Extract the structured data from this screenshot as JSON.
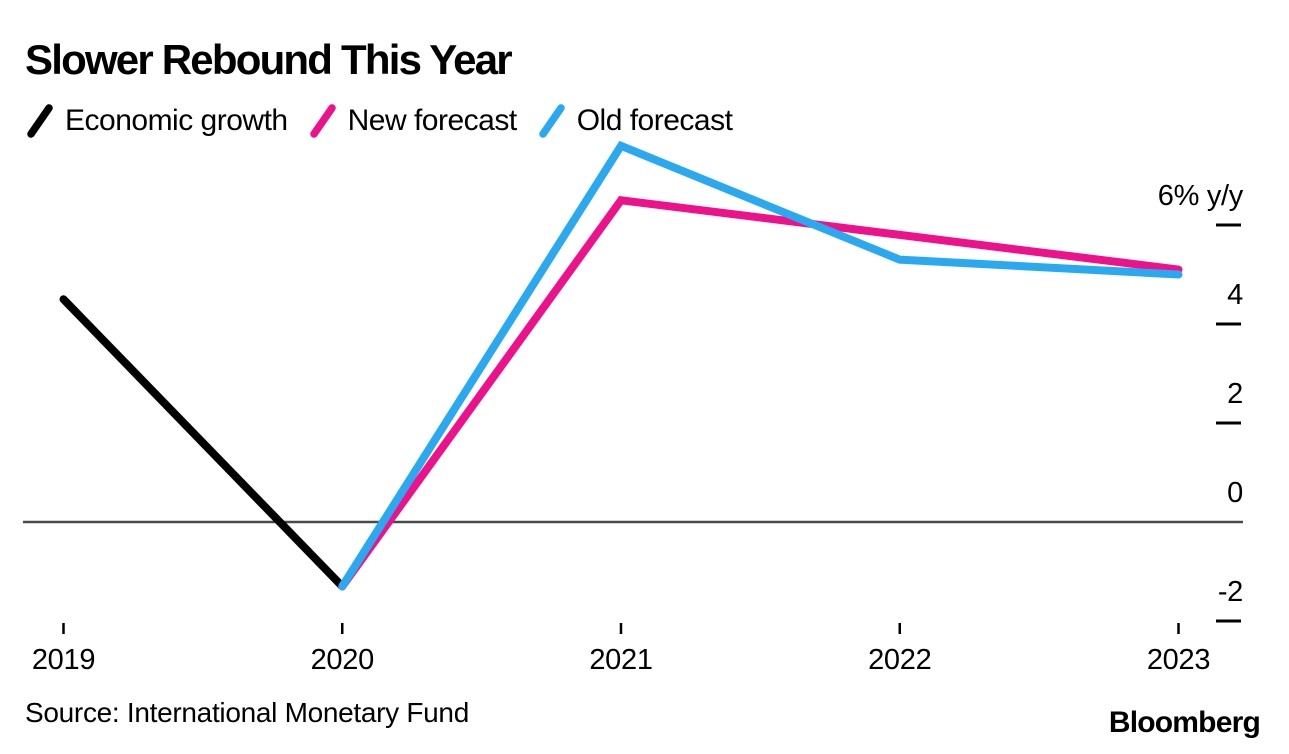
{
  "title": "Slower Rebound This Year",
  "legend": [
    {
      "label": "Economic growth",
      "color": "#000000"
    },
    {
      "label": "New forecast",
      "color": "#ed128c"
    },
    {
      "label": "Old forecast",
      "color": "#2aa9f0"
    }
  ],
  "source": "Source: International Monetary Fund",
  "brand": "Bloomberg",
  "chart_data": {
    "type": "line",
    "title": "Slower Rebound This Year",
    "xlabel": "",
    "ylabel": "% y/y",
    "x": [
      2019,
      2020,
      2021,
      2022,
      2023
    ],
    "x_ticks": [
      "2019",
      "2020",
      "2021",
      "2022",
      "2023"
    ],
    "y_ticks": [
      {
        "value": 6,
        "label": "6% y/y"
      },
      {
        "value": 4,
        "label": "4"
      },
      {
        "value": 2,
        "label": "2"
      },
      {
        "value": 0,
        "label": "0"
      },
      {
        "value": -2,
        "label": "-2"
      }
    ],
    "ylim": [
      -2.7,
      7.9
    ],
    "grid": false,
    "zero_baseline": true,
    "legend_position": "top",
    "series": [
      {
        "name": "Economic growth",
        "color": "#000000",
        "points": [
          [
            2019,
            4.5
          ],
          [
            2020,
            -1.3
          ]
        ]
      },
      {
        "name": "New forecast",
        "color": "#ed128c",
        "points": [
          [
            2020,
            -1.3
          ],
          [
            2021,
            6.5
          ],
          [
            2022,
            5.8
          ],
          [
            2023,
            5.1
          ]
        ]
      },
      {
        "name": "Old forecast",
        "color": "#2aa9f0",
        "points": [
          [
            2020,
            -1.3
          ],
          [
            2021,
            7.6
          ],
          [
            2022,
            5.3
          ],
          [
            2023,
            5.0
          ]
        ]
      }
    ]
  }
}
